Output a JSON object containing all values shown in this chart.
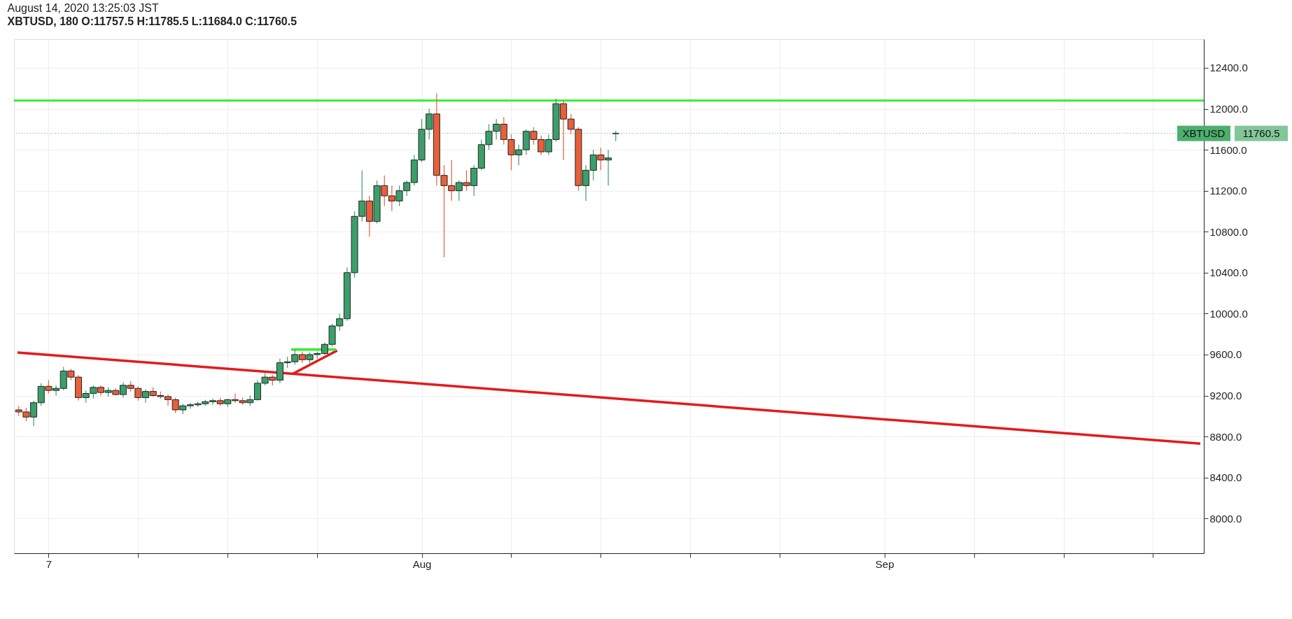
{
  "chart_data": {
    "type": "candlestick",
    "subtitle": "August 14, 2020 13:25:03 JST",
    "title": "XBTUSD, 180 O:11757.5 H:11785.5 L:11684.0 C:11760.5",
    "x": [
      "2020-07-05T00:00",
      "2020-07-05T12:00",
      "2020-07-06T00:00",
      "2020-07-06T12:00",
      "2020-07-07T00:00",
      "2020-07-07T12:00",
      "2020-07-08T00:00",
      "2020-07-08T12:00",
      "2020-07-09T00:00",
      "2020-07-09T12:00",
      "2020-07-10T00:00",
      "2020-07-10T12:00",
      "2020-07-11T00:00",
      "2020-07-11T12:00",
      "2020-07-12T00:00",
      "2020-07-12T12:00",
      "2020-07-13T00:00",
      "2020-07-13T12:00",
      "2020-07-14T00:00",
      "2020-07-14T12:00",
      "2020-07-15T00:00",
      "2020-07-15T12:00",
      "2020-07-16T00:00",
      "2020-07-16T12:00",
      "2020-07-17T00:00",
      "2020-07-17T12:00",
      "2020-07-18T00:00",
      "2020-07-18T12:00",
      "2020-07-19T00:00",
      "2020-07-19T12:00",
      "2020-07-20T00:00",
      "2020-07-20T12:00",
      "2020-07-21T00:00",
      "2020-07-21T12:00",
      "2020-07-22T00:00",
      "2020-07-22T12:00",
      "2020-07-23T00:00",
      "2020-07-23T12:00",
      "2020-07-24T00:00",
      "2020-07-24T12:00",
      "2020-07-25T00:00",
      "2020-07-25T12:00",
      "2020-07-26T00:00",
      "2020-07-26T12:00",
      "2020-07-27T00:00",
      "2020-07-27T12:00",
      "2020-07-28T00:00",
      "2020-07-28T12:00",
      "2020-07-29T00:00",
      "2020-07-29T12:00",
      "2020-07-30T00:00",
      "2020-07-30T12:00",
      "2020-07-31T00:00",
      "2020-07-31T12:00",
      "2020-08-01T00:00",
      "2020-08-01T12:00",
      "2020-08-02T00:00",
      "2020-08-02T12:00",
      "2020-08-03T00:00",
      "2020-08-03T12:00",
      "2020-08-04T00:00",
      "2020-08-04T12:00",
      "2020-08-05T00:00",
      "2020-08-05T12:00",
      "2020-08-06T00:00",
      "2020-08-06T12:00",
      "2020-08-07T00:00",
      "2020-08-07T12:00",
      "2020-08-08T00:00",
      "2020-08-08T12:00",
      "2020-08-09T00:00",
      "2020-08-09T12:00",
      "2020-08-10T00:00",
      "2020-08-10T12:00",
      "2020-08-11T00:00",
      "2020-08-11T12:00",
      "2020-08-12T00:00",
      "2020-08-12T12:00",
      "2020-08-13T00:00",
      "2020-08-13T12:00",
      "2020-08-14T00:00"
    ],
    "ohlc": [
      [
        9060,
        9100,
        9000,
        9040
      ],
      [
        9040,
        9080,
        8950,
        8990
      ],
      [
        8990,
        9150,
        8900,
        9130
      ],
      [
        9130,
        9320,
        9100,
        9290
      ],
      [
        9290,
        9350,
        9220,
        9250
      ],
      [
        9250,
        9300,
        9200,
        9270
      ],
      [
        9270,
        9480,
        9250,
        9440
      ],
      [
        9440,
        9460,
        9350,
        9380
      ],
      [
        9380,
        9400,
        9150,
        9180
      ],
      [
        9180,
        9250,
        9130,
        9220
      ],
      [
        9220,
        9300,
        9170,
        9280
      ],
      [
        9280,
        9300,
        9200,
        9230
      ],
      [
        9230,
        9280,
        9190,
        9250
      ],
      [
        9250,
        9270,
        9200,
        9210
      ],
      [
        9210,
        9330,
        9180,
        9300
      ],
      [
        9300,
        9340,
        9240,
        9270
      ],
      [
        9270,
        9290,
        9150,
        9180
      ],
      [
        9180,
        9260,
        9130,
        9240
      ],
      [
        9240,
        9280,
        9190,
        9200
      ],
      [
        9200,
        9240,
        9170,
        9190
      ],
      [
        9190,
        9210,
        9100,
        9160
      ],
      [
        9160,
        9180,
        9030,
        9060
      ],
      [
        9060,
        9120,
        9020,
        9100
      ],
      [
        9100,
        9130,
        9070,
        9110
      ],
      [
        9110,
        9140,
        9090,
        9120
      ],
      [
        9120,
        9160,
        9100,
        9140
      ],
      [
        9140,
        9170,
        9110,
        9150
      ],
      [
        9150,
        9180,
        9100,
        9120
      ],
      [
        9120,
        9170,
        9090,
        9160
      ],
      [
        9160,
        9220,
        9130,
        9150
      ],
      [
        9150,
        9180,
        9110,
        9130
      ],
      [
        9130,
        9200,
        9100,
        9160
      ],
      [
        9160,
        9350,
        9150,
        9320
      ],
      [
        9320,
        9420,
        9300,
        9380
      ],
      [
        9380,
        9400,
        9300,
        9350
      ],
      [
        9350,
        9560,
        9320,
        9520
      ],
      [
        9520,
        9580,
        9470,
        9530
      ],
      [
        9530,
        9650,
        9500,
        9600
      ],
      [
        9600,
        9630,
        9520,
        9550
      ],
      [
        9550,
        9620,
        9500,
        9600
      ],
      [
        9600,
        9630,
        9560,
        9610
      ],
      [
        9610,
        9720,
        9600,
        9700
      ],
      [
        9700,
        9900,
        9680,
        9880
      ],
      [
        9880,
        10000,
        9830,
        9950
      ],
      [
        9950,
        10450,
        9930,
        10400
      ],
      [
        10400,
        11000,
        10350,
        10950
      ],
      [
        10950,
        11400,
        10900,
        11100
      ],
      [
        11100,
        11150,
        10750,
        10900
      ],
      [
        10900,
        11300,
        10880,
        11250
      ],
      [
        11250,
        11350,
        11050,
        11150
      ],
      [
        11150,
        11250,
        11000,
        11100
      ],
      [
        11100,
        11250,
        11050,
        11200
      ],
      [
        11200,
        11300,
        11150,
        11280
      ],
      [
        11280,
        11550,
        11250,
        11500
      ],
      [
        11500,
        11900,
        11480,
        11800
      ],
      [
        11800,
        12000,
        11700,
        11950
      ],
      [
        11950,
        12150,
        11250,
        11350
      ],
      [
        11350,
        11450,
        10550,
        11250
      ],
      [
        11250,
        11500,
        11100,
        11200
      ],
      [
        11200,
        11300,
        11100,
        11280
      ],
      [
        11280,
        11400,
        11200,
        11250
      ],
      [
        11250,
        11450,
        11150,
        11420
      ],
      [
        11420,
        11700,
        11400,
        11650
      ],
      [
        11650,
        11850,
        11600,
        11780
      ],
      [
        11780,
        11900,
        11700,
        11850
      ],
      [
        11850,
        11920,
        11650,
        11700
      ],
      [
        11700,
        11750,
        11400,
        11550
      ],
      [
        11550,
        11650,
        11450,
        11600
      ],
      [
        11600,
        11800,
        11550,
        11780
      ],
      [
        11780,
        11820,
        11650,
        11700
      ],
      [
        11700,
        11740,
        11550,
        11580
      ],
      [
        11580,
        11750,
        11550,
        11700
      ],
      [
        11700,
        12100,
        11680,
        12050
      ],
      [
        12050,
        12080,
        11500,
        11900
      ],
      [
        11900,
        11950,
        11750,
        11800
      ],
      [
        11800,
        11820,
        11200,
        11250
      ],
      [
        11250,
        11450,
        11100,
        11400
      ],
      [
        11400,
        11600,
        11300,
        11550
      ],
      [
        11550,
        11620,
        11400,
        11500
      ],
      [
        11500,
        11600,
        11250,
        11520
      ],
      [
        11757.5,
        11785.5,
        11684.0,
        11760.5
      ]
    ],
    "colors": [
      "#e5603b",
      "#e5603b",
      "#3c9f6a",
      "#3c9f6a",
      "#e5603b",
      "#3c9f6a",
      "#3c9f6a",
      "#e5603b",
      "#e5603b",
      "#3c9f6a",
      "#3c9f6a",
      "#e5603b",
      "#3c9f6a",
      "#e5603b",
      "#3c9f6a",
      "#e5603b",
      "#e5603b",
      "#3c9f6a",
      "#e5603b",
      "#e5603b",
      "#e5603b",
      "#e5603b",
      "#3c9f6a",
      "#3c9f6a",
      "#3c9f6a",
      "#3c9f6a",
      "#3c9f6a",
      "#e5603b",
      "#3c9f6a",
      "#e5603b",
      "#e5603b",
      "#3c9f6a",
      "#3c9f6a",
      "#3c9f6a",
      "#e5603b",
      "#3c9f6a",
      "#3c9f6a",
      "#3c9f6a",
      "#e5603b",
      "#3c9f6a",
      "#3c9f6a",
      "#3c9f6a",
      "#3c9f6a",
      "#3c9f6a",
      "#3c9f6a",
      "#3c9f6a",
      "#3c9f6a",
      "#e5603b",
      "#3c9f6a",
      "#e5603b",
      "#e5603b",
      "#3c9f6a",
      "#3c9f6a",
      "#3c9f6a",
      "#3c9f6a",
      "#3c9f6a",
      "#e5603b",
      "#e5603b",
      "#e5603b",
      "#3c9f6a",
      "#e5603b",
      "#3c9f6a",
      "#3c9f6a",
      "#3c9f6a",
      "#3c9f6a",
      "#e5603b",
      "#e5603b",
      "#3c9f6a",
      "#3c9f6a",
      "#e5603b",
      "#e5603b",
      "#3c9f6a",
      "#3c9f6a",
      "#e5603b",
      "#e5603b",
      "#e5603b",
      "#3c9f6a",
      "#3c9f6a",
      "#e5603b",
      "#3c9f6a",
      "#3c9f6a"
    ],
    "series": [
      {
        "type": "line",
        "color": "#e31b1b",
        "x": [
          "2020-07-04T22:00",
          "2020-09-22T04:00"
        ],
        "values": [
          9620,
          8730
        ]
      },
      {
        "type": "line",
        "color": "#e31b1b",
        "x": [
          "2020-07-23T08:00",
          "2020-07-26T08:00"
        ],
        "values": [
          9410,
          9640
        ]
      },
      {
        "type": "line",
        "color": "#33ee33",
        "x": [
          "2020-07-23T06:00",
          "2020-07-26T06:00"
        ],
        "values": [
          9650,
          9650
        ]
      }
    ],
    "ref_lines": [
      {
        "axis": "y",
        "value": 12080,
        "color": "#33ee33",
        "line_style": "solid"
      },
      {
        "axis": "y",
        "value": 11760.5,
        "label": "XBTUSD",
        "color": "#4caf6e",
        "line_style": "dotted"
      }
    ],
    "xlim": [
      "2020-07-04T22:00",
      "2020-09-22T04:00"
    ],
    "xticks": [
      {
        "value": "2020-07-07",
        "label": "7"
      },
      {
        "value": "2020-07-13",
        "label": null
      },
      {
        "value": "2020-07-19",
        "label": null
      },
      {
        "value": "2020-07-25",
        "label": null
      },
      {
        "value": "2020-08-01",
        "label": "Aug"
      },
      {
        "value": "2020-08-07",
        "label": null
      },
      {
        "value": "2020-08-13",
        "label": null
      },
      {
        "value": "2020-08-19",
        "label": null
      },
      {
        "value": "2020-08-25",
        "label": null
      },
      {
        "value": "2020-09-01",
        "label": "Sep"
      },
      {
        "value": "2020-09-07",
        "label": null
      },
      {
        "value": "2020-09-13",
        "label": null
      },
      {
        "value": "2020-09-19",
        "label": null
      }
    ],
    "ylim": [
      7660,
      12680
    ],
    "yticks": [
      {
        "value": 8000,
        "label": "8000.0"
      },
      {
        "value": 8400,
        "label": "8400.0"
      },
      {
        "value": 8800,
        "label": "8800.0"
      },
      {
        "value": 9200,
        "label": "9200.0"
      },
      {
        "value": 9600,
        "label": "9600.0"
      },
      {
        "value": 10000,
        "label": "10000.0"
      },
      {
        "value": 10400,
        "label": "10400.0"
      },
      {
        "value": 10800,
        "label": "10800.0"
      },
      {
        "value": 11200,
        "label": "11200.0"
      },
      {
        "value": 11600,
        "label": "11600.0"
      },
      {
        "value": 12000,
        "label": "12000.0"
      },
      {
        "value": 12400,
        "label": "12400.0"
      }
    ],
    "annotations": [
      "11760.5"
    ],
    "grid": true
  }
}
